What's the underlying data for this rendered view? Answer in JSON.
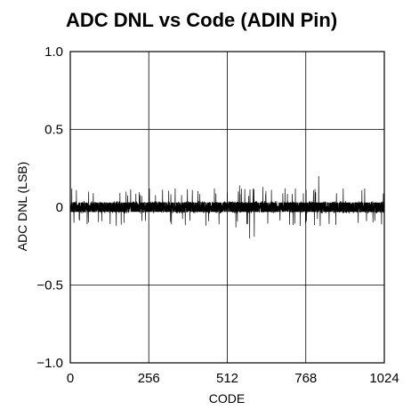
{
  "chart_data": {
    "type": "line",
    "title": "ADC DNL vs Code (ADIN Pin)",
    "xlabel": "CODE",
    "ylabel": "ADC DNL (LSB)",
    "xlim": [
      0,
      1024
    ],
    "ylim": [
      -1.0,
      1.0
    ],
    "x_ticks": [
      0,
      256,
      512,
      768,
      1024
    ],
    "x_tick_labels": [
      "0",
      "256",
      "512",
      "768",
      "1024"
    ],
    "y_ticks": [
      -1.0,
      -0.5,
      0,
      0.5,
      1.0
    ],
    "y_tick_labels": [
      "−1.0",
      "−0.5",
      "0",
      "0.5",
      "1.0"
    ],
    "grid": true,
    "series": [
      {
        "line_color": "#000000",
        "band_low": -0.04,
        "band_high": 0.04,
        "typical_spike_range": [
          -0.12,
          0.12
        ],
        "spikes": [
          {
            "x": 5,
            "y": 0.12
          },
          {
            "x": 12,
            "y": -0.1
          },
          {
            "x": 20,
            "y": 0.11
          },
          {
            "x": 55,
            "y": -0.11
          },
          {
            "x": 60,
            "y": 0.1
          },
          {
            "x": 175,
            "y": -0.1
          },
          {
            "x": 182,
            "y": 0.1
          },
          {
            "x": 330,
            "y": -0.11
          },
          {
            "x": 342,
            "y": 0.12
          },
          {
            "x": 470,
            "y": 0.12
          },
          {
            "x": 485,
            "y": -0.11
          },
          {
            "x": 540,
            "y": -0.13
          },
          {
            "x": 552,
            "y": 0.14
          },
          {
            "x": 585,
            "y": -0.2
          },
          {
            "x": 600,
            "y": -0.19
          },
          {
            "x": 628,
            "y": 0.13
          },
          {
            "x": 700,
            "y": 0.12
          },
          {
            "x": 750,
            "y": -0.12
          },
          {
            "x": 810,
            "y": 0.2
          },
          {
            "x": 815,
            "y": -0.12
          },
          {
            "x": 890,
            "y": 0.12
          },
          {
            "x": 960,
            "y": 0.12
          },
          {
            "x": 1015,
            "y": -0.11
          }
        ]
      }
    ]
  }
}
